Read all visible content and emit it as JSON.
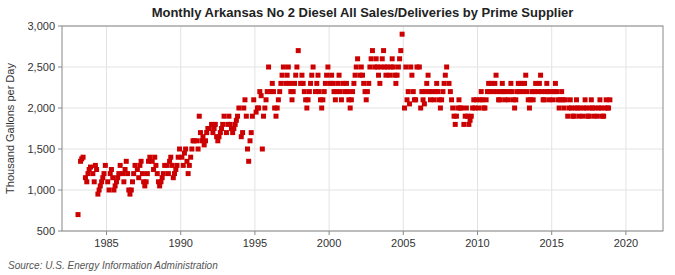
{
  "chart_data": {
    "type": "scatter",
    "title": "Monthly Arkansas No 2 Diesel All Sales/Deliveries by Prime Supplier",
    "ylabel": "Thousand Gallons per Day",
    "source": "Source: U.S. Energy Information Administration",
    "color": "#cc0000",
    "marker": "square",
    "grid": true,
    "xlim": [
      1982.0,
      2022.5
    ],
    "xticks": [
      1985,
      1990,
      1995,
      2000,
      2005,
      2010,
      2015,
      2020
    ],
    "ylim": [
      500,
      3000
    ],
    "yticks": [
      500,
      {
        "value": 1000,
        "label": "1,000"
      },
      {
        "value": 1500,
        "label": "1,500"
      },
      {
        "value": 2000,
        "label": "2,000"
      },
      {
        "value": 2500,
        "label": "2,500"
      },
      {
        "value": 3000,
        "label": "3,000"
      }
    ],
    "x": [
      1983.08,
      1983.25,
      1983.33,
      1983.42,
      1983.58,
      1983.67,
      1983.75,
      1983.83,
      1983.92,
      1984.08,
      1984.17,
      1984.25,
      1984.33,
      1984.42,
      1984.5,
      1984.58,
      1984.67,
      1984.75,
      1984.83,
      1984.92,
      1985.08,
      1985.17,
      1985.25,
      1985.33,
      1985.42,
      1985.5,
      1985.58,
      1985.67,
      1985.75,
      1985.83,
      1985.92,
      1986.08,
      1986.17,
      1986.25,
      1986.33,
      1986.42,
      1986.5,
      1986.58,
      1986.67,
      1986.75,
      1986.83,
      1986.92,
      1987.08,
      1987.17,
      1987.25,
      1987.33,
      1987.42,
      1987.5,
      1987.58,
      1987.67,
      1987.75,
      1987.83,
      1987.92,
      1988.08,
      1988.17,
      1988.25,
      1988.33,
      1988.42,
      1988.5,
      1988.58,
      1988.67,
      1988.75,
      1988.83,
      1988.92,
      1989.08,
      1989.17,
      1989.25,
      1989.33,
      1989.42,
      1989.5,
      1989.58,
      1989.67,
      1989.75,
      1989.83,
      1989.92,
      1990.08,
      1990.17,
      1990.25,
      1990.33,
      1990.42,
      1990.5,
      1990.58,
      1990.67,
      1990.75,
      1990.83,
      1990.92,
      1991.08,
      1991.17,
      1991.25,
      1991.33,
      1991.42,
      1991.5,
      1991.58,
      1991.67,
      1991.75,
      1991.83,
      1991.92,
      1992.08,
      1992.17,
      1992.25,
      1992.33,
      1992.42,
      1992.5,
      1992.58,
      1992.67,
      1992.75,
      1992.83,
      1992.92,
      1993.08,
      1993.17,
      1993.25,
      1993.33,
      1993.42,
      1993.5,
      1993.58,
      1993.67,
      1993.75,
      1993.83,
      1993.92,
      1994.08,
      1994.17,
      1994.25,
      1994.33,
      1994.42,
      1994.5,
      1994.58,
      1994.67,
      1994.75,
      1994.83,
      1994.92,
      1995.08,
      1995.17,
      1995.25,
      1995.33,
      1995.42,
      1995.5,
      1995.58,
      1995.67,
      1995.75,
      1995.83,
      1995.92,
      1996.08,
      1996.17,
      1996.25,
      1996.33,
      1996.42,
      1996.5,
      1996.58,
      1996.67,
      1996.75,
      1996.83,
      1996.92,
      1997.08,
      1997.17,
      1997.25,
      1997.33,
      1997.42,
      1997.5,
      1997.58,
      1997.67,
      1997.75,
      1997.83,
      1997.92,
      1998.08,
      1998.17,
      1998.25,
      1998.33,
      1998.42,
      1998.5,
      1998.58,
      1998.67,
      1998.75,
      1998.83,
      1998.92,
      1999.08,
      1999.17,
      1999.25,
      1999.33,
      1999.42,
      1999.5,
      1999.58,
      1999.67,
      1999.75,
      1999.83,
      1999.92,
      2000.08,
      2000.17,
      2000.25,
      2000.33,
      2000.42,
      2000.5,
      2000.58,
      2000.67,
      2000.75,
      2000.83,
      2000.92,
      2001.08,
      2001.17,
      2001.25,
      2001.33,
      2001.42,
      2001.5,
      2001.58,
      2001.67,
      2001.75,
      2001.83,
      2001.92,
      2002.08,
      2002.17,
      2002.25,
      2002.33,
      2002.42,
      2002.5,
      2002.58,
      2002.67,
      2002.75,
      2002.83,
      2002.92,
      2003.08,
      2003.17,
      2003.25,
      2003.33,
      2003.42,
      2003.5,
      2003.58,
      2003.67,
      2003.75,
      2003.83,
      2003.92,
      2004.08,
      2004.17,
      2004.25,
      2004.33,
      2004.42,
      2004.5,
      2004.58,
      2004.67,
      2004.75,
      2004.83,
      2004.92,
      2005.08,
      2005.17,
      2005.25,
      2005.33,
      2005.42,
      2005.5,
      2005.58,
      2005.67,
      2005.75,
      2005.83,
      2005.92,
      2006.08,
      2006.17,
      2006.25,
      2006.33,
      2006.42,
      2006.5,
      2006.58,
      2006.67,
      2006.75,
      2006.83,
      2006.92,
      2007.08,
      2007.17,
      2007.25,
      2007.33,
      2007.42,
      2007.5,
      2007.58,
      2007.67,
      2007.75,
      2007.83,
      2007.92,
      2008.08,
      2008.17,
      2008.25,
      2008.33,
      2008.42,
      2008.5,
      2008.58,
      2008.67,
      2008.75,
      2008.83,
      2008.92,
      2009.08,
      2009.17,
      2009.25,
      2009.33,
      2009.42,
      2009.5,
      2009.58,
      2009.67,
      2009.75,
      2009.83,
      2009.92,
      2010.08,
      2010.17,
      2010.25,
      2010.33,
      2010.42,
      2010.5,
      2010.58,
      2010.67,
      2010.75,
      2010.83,
      2010.92,
      2011.08,
      2011.17,
      2011.25,
      2011.33,
      2011.42,
      2011.5,
      2011.58,
      2011.67,
      2011.75,
      2011.83,
      2011.92,
      2012.08,
      2012.17,
      2012.25,
      2012.33,
      2012.42,
      2012.5,
      2012.58,
      2012.67,
      2012.75,
      2012.83,
      2012.92,
      2013.08,
      2013.17,
      2013.25,
      2013.33,
      2013.42,
      2013.5,
      2013.58,
      2013.67,
      2013.75,
      2013.83,
      2013.92,
      2014.08,
      2014.17,
      2014.25,
      2014.33,
      2014.42,
      2014.5,
      2014.58,
      2014.67,
      2014.75,
      2014.83,
      2014.92,
      2015.08,
      2015.17,
      2015.25,
      2015.33,
      2015.42,
      2015.5,
      2015.58,
      2015.67,
      2015.75,
      2015.83,
      2015.92,
      2016.08,
      2016.17,
      2016.25,
      2016.33,
      2016.42,
      2016.5,
      2016.58,
      2016.67,
      2016.75,
      2016.83,
      2016.92,
      2017.08,
      2017.17,
      2017.25,
      2017.33,
      2017.42,
      2017.5,
      2017.58,
      2017.67,
      2017.75,
      2017.83,
      2017.92,
      2018.08,
      2018.17,
      2018.25,
      2018.33,
      2018.42,
      2018.5,
      2018.58,
      2018.67,
      2018.75,
      2018.83,
      2018.92
    ],
    "values": [
      700,
      1350,
      1380,
      1400,
      1150,
      1100,
      1200,
      1250,
      1280,
      1200,
      1100,
      1300,
      1250,
      950,
      1000,
      1050,
      1100,
      1150,
      1200,
      1300,
      1100,
      1000,
      1200,
      1250,
      1150,
      1000,
      1050,
      1100,
      1150,
      1200,
      1300,
      1200,
      1100,
      1250,
      1350,
      1200,
      1000,
      950,
      1000,
      1100,
      1200,
      1300,
      1250,
      1150,
      1300,
      1350,
      1200,
      1100,
      1050,
      1100,
      1200,
      1350,
      1400,
      1350,
      1250,
      1400,
      1300,
      1200,
      1100,
      1050,
      1100,
      1150,
      1200,
      1300,
      1300,
      1200,
      1350,
      1400,
      1300,
      1150,
      1200,
      1250,
      1300,
      1400,
      1500,
      1400,
      1300,
      1450,
      1500,
      1350,
      1200,
      1300,
      1400,
      1500,
      1600,
      1600,
      1600,
      1500,
      1900,
      1700,
      1600,
      1650,
      1550,
      1600,
      1700,
      1750,
      1750,
      1800,
      1700,
      1750,
      1800,
      1650,
      1600,
      1650,
      1700,
      1750,
      1800,
      1900,
      1700,
      1800,
      1900,
      1800,
      1750,
      1700,
      1750,
      1800,
      1850,
      1900,
      2000,
      1650,
      1700,
      2000,
      2100,
      1900,
      1500,
      1350,
      1600,
      1700,
      1900,
      2100,
      1950,
      2000,
      2000,
      2200,
      2150,
      1500,
      1900,
      2000,
      2100,
      2200,
      2500,
      2200,
      2300,
      2200,
      2000,
      1900,
      2000,
      2100,
      2200,
      2300,
      2400,
      2500,
      2300,
      2400,
      2500,
      2300,
      2200,
      2100,
      2200,
      2300,
      2400,
      2500,
      2700,
      2300,
      2400,
      2300,
      2200,
      2100,
      2000,
      2100,
      2200,
      2300,
      2400,
      2500,
      2200,
      2300,
      2400,
      2200,
      2100,
      2000,
      2100,
      2200,
      2300,
      2400,
      2500,
      2300,
      2400,
      2300,
      2200,
      2100,
      2200,
      2300,
      2400,
      2200,
      2100,
      2300,
      2200,
      2300,
      2200,
      2100,
      2000,
      2100,
      2200,
      2300,
      2400,
      2500,
      2600,
      2400,
      2500,
      2400,
      2300,
      2200,
      2100,
      2200,
      2300,
      2500,
      2600,
      2700,
      2500,
      2600,
      2500,
      2400,
      2300,
      2500,
      2600,
      2700,
      2500,
      2400,
      2500,
      2400,
      2500,
      2600,
      2500,
      2400,
      2300,
      2400,
      2500,
      2600,
      2700,
      2900,
      2000,
      2500,
      2100,
      2200,
      2050,
      2500,
      2400,
      2200,
      2100,
      2100,
      2500,
      2500,
      2000,
      2200,
      2100,
      2050,
      2200,
      2300,
      2400,
      2200,
      2100,
      2200,
      2100,
      2200,
      2300,
      2200,
      2100,
      2000,
      2100,
      2200,
      2300,
      2400,
      2500,
      2300,
      2200,
      2100,
      2000,
      1900,
      1800,
      1900,
      2000,
      2100,
      2000,
      2000,
      1800,
      1900,
      2000,
      1900,
      1800,
      1850,
      1900,
      2000,
      2100,
      2000,
      2100,
      2000,
      2100,
      2200,
      2100,
      2000,
      2000,
      2100,
      2200,
      2300,
      2200,
      2300,
      2200,
      2300,
      2400,
      2200,
      2100,
      2100,
      2200,
      2300,
      2200,
      2100,
      2200,
      2100,
      2200,
      2300,
      2200,
      2100,
      2000,
      2100,
      2200,
      2300,
      2200,
      2300,
      2200,
      2300,
      2400,
      2200,
      2100,
      2000,
      2100,
      2200,
      2100,
      2200,
      2300,
      2200,
      2300,
      2400,
      2200,
      2100,
      2100,
      2200,
      2300,
      2200,
      2100,
      2200,
      2100,
      2200,
      2300,
      2200,
      2100,
      2000,
      2100,
      2200,
      2100,
      2000,
      2100,
      1900,
      2000,
      2100,
      2000,
      1900,
      1900,
      2000,
      2100,
      2000,
      1900,
      2000,
      1900,
      2000,
      2100,
      2000,
      1900,
      1900,
      2000,
      2100,
      2000,
      1900,
      2000,
      1900,
      2000,
      2100,
      2000,
      1900,
      1900,
      2000,
      2100,
      2000,
      2000,
      2100
    ]
  }
}
